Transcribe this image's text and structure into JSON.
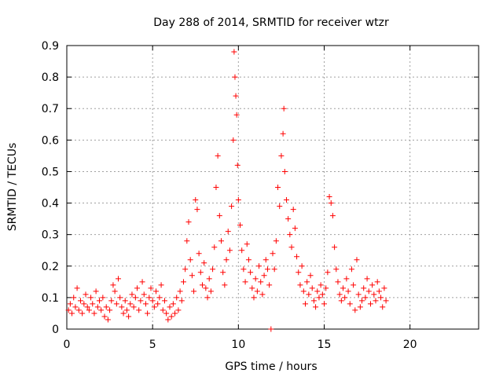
{
  "chart_data": {
    "type": "scatter",
    "title": "Day 288 of 2014, SRMTID for receiver wtzr",
    "xlabel": "GPS time / hours",
    "ylabel": "SRMTID / TECUs",
    "xlim": [
      0,
      24
    ],
    "ylim": [
      0,
      0.9
    ],
    "xticks": [
      0,
      5,
      10,
      15,
      20
    ],
    "yticks": [
      0,
      0.1,
      0.2,
      0.3,
      0.4,
      0.5,
      0.6,
      0.7,
      0.8,
      0.9
    ],
    "xtick_labels": [
      "0",
      "5",
      "10",
      "15",
      "20"
    ],
    "ytick_labels": [
      "0",
      "0.1",
      "0.2",
      "0.3",
      "0.4",
      "0.5",
      "0.6",
      "0.7",
      "0.8",
      "0.9"
    ],
    "grid": true,
    "marker": "+",
    "color": "#ff0000",
    "series": [
      {
        "name": "SRMTID",
        "points": [
          [
            0.1,
            0.06
          ],
          [
            0.2,
            0.08
          ],
          [
            0.3,
            0.05
          ],
          [
            0.4,
            0.1
          ],
          [
            0.5,
            0.07
          ],
          [
            0.6,
            0.13
          ],
          [
            0.7,
            0.06
          ],
          [
            0.8,
            0.09
          ],
          [
            0.9,
            0.05
          ],
          [
            1.0,
            0.08
          ],
          [
            1.1,
            0.11
          ],
          [
            1.2,
            0.07
          ],
          [
            1.3,
            0.06
          ],
          [
            1.4,
            0.1
          ],
          [
            1.5,
            0.08
          ],
          [
            1.6,
            0.05
          ],
          [
            1.7,
            0.12
          ],
          [
            1.8,
            0.07
          ],
          [
            1.9,
            0.09
          ],
          [
            2.0,
            0.06
          ],
          [
            2.1,
            0.1
          ],
          [
            2.2,
            0.04
          ],
          [
            2.3,
            0.07
          ],
          [
            2.4,
            0.03
          ],
          [
            2.5,
            0.06
          ],
          [
            2.6,
            0.09
          ],
          [
            2.7,
            0.14
          ],
          [
            2.8,
            0.12
          ],
          [
            2.9,
            0.08
          ],
          [
            3.0,
            0.16
          ],
          [
            3.1,
            0.1
          ],
          [
            3.2,
            0.07
          ],
          [
            3.3,
            0.05
          ],
          [
            3.4,
            0.09
          ],
          [
            3.5,
            0.06
          ],
          [
            3.6,
            0.04
          ],
          [
            3.7,
            0.08
          ],
          [
            3.8,
            0.11
          ],
          [
            3.9,
            0.07
          ],
          [
            4.0,
            0.1
          ],
          [
            4.1,
            0.13
          ],
          [
            4.2,
            0.06
          ],
          [
            4.3,
            0.09
          ],
          [
            4.4,
            0.15
          ],
          [
            4.5,
            0.11
          ],
          [
            4.6,
            0.08
          ],
          [
            4.7,
            0.05
          ],
          [
            4.8,
            0.1
          ],
          [
            4.9,
            0.13
          ],
          [
            5.0,
            0.09
          ],
          [
            5.1,
            0.07
          ],
          [
            5.2,
            0.12
          ],
          [
            5.3,
            0.08
          ],
          [
            5.4,
            0.1
          ],
          [
            5.5,
            0.14
          ],
          [
            5.6,
            0.06
          ],
          [
            5.7,
            0.09
          ],
          [
            5.8,
            0.05
          ],
          [
            5.9,
            0.03
          ],
          [
            6.0,
            0.07
          ],
          [
            6.1,
            0.04
          ],
          [
            6.2,
            0.08
          ],
          [
            6.3,
            0.05
          ],
          [
            6.4,
            0.1
          ],
          [
            6.5,
            0.06
          ],
          [
            6.6,
            0.12
          ],
          [
            6.7,
            0.09
          ],
          [
            6.8,
            0.15
          ],
          [
            6.9,
            0.19
          ],
          [
            7.0,
            0.28
          ],
          [
            7.1,
            0.34
          ],
          [
            7.2,
            0.22
          ],
          [
            7.3,
            0.17
          ],
          [
            7.4,
            0.12
          ],
          [
            7.5,
            0.41
          ],
          [
            7.6,
            0.38
          ],
          [
            7.7,
            0.24
          ],
          [
            7.8,
            0.18
          ],
          [
            7.9,
            0.14
          ],
          [
            8.0,
            0.21
          ],
          [
            8.1,
            0.13
          ],
          [
            8.2,
            0.1
          ],
          [
            8.3,
            0.16
          ],
          [
            8.4,
            0.12
          ],
          [
            8.5,
            0.19
          ],
          [
            8.6,
            0.26
          ],
          [
            8.7,
            0.45
          ],
          [
            8.8,
            0.55
          ],
          [
            8.9,
            0.36
          ],
          [
            9.0,
            0.28
          ],
          [
            9.1,
            0.18
          ],
          [
            9.2,
            0.14
          ],
          [
            9.3,
            0.22
          ],
          [
            9.4,
            0.31
          ],
          [
            9.5,
            0.25
          ],
          [
            9.6,
            0.39
          ],
          [
            9.7,
            0.6
          ],
          [
            9.75,
            0.88
          ],
          [
            9.8,
            0.8
          ],
          [
            9.85,
            0.74
          ],
          [
            9.9,
            0.68
          ],
          [
            9.95,
            0.52
          ],
          [
            10.0,
            0.41
          ],
          [
            10.1,
            0.33
          ],
          [
            10.2,
            0.25
          ],
          [
            10.3,
            0.19
          ],
          [
            10.4,
            0.15
          ],
          [
            10.5,
            0.27
          ],
          [
            10.6,
            0.22
          ],
          [
            10.7,
            0.18
          ],
          [
            10.8,
            0.13
          ],
          [
            10.9,
            0.1
          ],
          [
            11.0,
            0.16
          ],
          [
            11.1,
            0.12
          ],
          [
            11.2,
            0.2
          ],
          [
            11.3,
            0.15
          ],
          [
            11.4,
            0.11
          ],
          [
            11.5,
            0.17
          ],
          [
            11.6,
            0.22
          ],
          [
            11.7,
            0.19
          ],
          [
            11.8,
            0.14
          ],
          [
            11.9,
            0.0
          ],
          [
            12.0,
            0.24
          ],
          [
            12.1,
            0.19
          ],
          [
            12.2,
            0.28
          ],
          [
            12.3,
            0.45
          ],
          [
            12.4,
            0.39
          ],
          [
            12.5,
            0.55
          ],
          [
            12.6,
            0.62
          ],
          [
            12.65,
            0.7
          ],
          [
            12.7,
            0.5
          ],
          [
            12.8,
            0.41
          ],
          [
            12.9,
            0.35
          ],
          [
            13.0,
            0.3
          ],
          [
            13.1,
            0.26
          ],
          [
            13.2,
            0.38
          ],
          [
            13.3,
            0.32
          ],
          [
            13.4,
            0.23
          ],
          [
            13.5,
            0.18
          ],
          [
            13.6,
            0.14
          ],
          [
            13.7,
            0.2
          ],
          [
            13.8,
            0.12
          ],
          [
            13.9,
            0.08
          ],
          [
            14.0,
            0.15
          ],
          [
            14.1,
            0.11
          ],
          [
            14.2,
            0.17
          ],
          [
            14.3,
            0.13
          ],
          [
            14.4,
            0.09
          ],
          [
            14.5,
            0.07
          ],
          [
            14.6,
            0.12
          ],
          [
            14.7,
            0.1
          ],
          [
            14.8,
            0.14
          ],
          [
            14.9,
            0.11
          ],
          [
            15.0,
            0.08
          ],
          [
            15.1,
            0.13
          ],
          [
            15.2,
            0.18
          ],
          [
            15.3,
            0.42
          ],
          [
            15.4,
            0.4
          ],
          [
            15.5,
            0.36
          ],
          [
            15.6,
            0.26
          ],
          [
            15.7,
            0.19
          ],
          [
            15.8,
            0.15
          ],
          [
            15.9,
            0.11
          ],
          [
            16.0,
            0.09
          ],
          [
            16.1,
            0.13
          ],
          [
            16.2,
            0.1
          ],
          [
            16.3,
            0.16
          ],
          [
            16.4,
            0.12
          ],
          [
            16.5,
            0.08
          ],
          [
            16.6,
            0.19
          ],
          [
            16.7,
            0.14
          ],
          [
            16.8,
            0.06
          ],
          [
            16.9,
            0.22
          ],
          [
            17.0,
            0.11
          ],
          [
            17.1,
            0.07
          ],
          [
            17.2,
            0.09
          ],
          [
            17.3,
            0.13
          ],
          [
            17.4,
            0.1
          ],
          [
            17.5,
            0.16
          ],
          [
            17.6,
            0.12
          ],
          [
            17.7,
            0.08
          ],
          [
            17.8,
            0.14
          ],
          [
            17.9,
            0.11
          ],
          [
            18.0,
            0.09
          ],
          [
            18.1,
            0.15
          ],
          [
            18.2,
            0.12
          ],
          [
            18.3,
            0.1
          ],
          [
            18.4,
            0.07
          ],
          [
            18.5,
            0.13
          ],
          [
            18.6,
            0.09
          ]
        ]
      }
    ]
  }
}
